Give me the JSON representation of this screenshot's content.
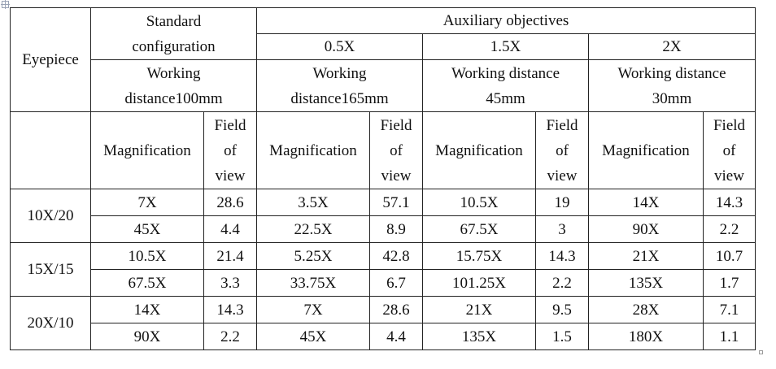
{
  "table": {
    "eyepiece_label": "Eyepiece",
    "standard": {
      "line1": "Standard",
      "line2": "configuration",
      "wd_line1": "Working",
      "wd_line2": "distance100mm"
    },
    "auxiliary_label": "Auxiliary objectives",
    "objectives": [
      {
        "label": "0.5X",
        "wd_line1": "Working",
        "wd_line2": "distance165mm"
      },
      {
        "label": "1.5X",
        "wd_line1": "Working distance",
        "wd_line2": "45mm"
      },
      {
        "label": "2X",
        "wd_line1": "Working distance",
        "wd_line2": "30mm"
      }
    ],
    "magnification_label": "Magnification",
    "fov_line1": "Field",
    "fov_line2": "of",
    "fov_line3": "view",
    "groups": [
      {
        "eyepiece": "10X/20",
        "rows": [
          [
            "7X",
            "28.6",
            "3.5X",
            "57.1",
            "10.5X",
            "19",
            "14X",
            "14.3"
          ],
          [
            "45X",
            "4.4",
            "22.5X",
            "8.9",
            "67.5X",
            "3",
            "90X",
            "2.2"
          ]
        ]
      },
      {
        "eyepiece": "15X/15",
        "rows": [
          [
            "10.5X",
            "21.4",
            "5.25X",
            "42.8",
            "15.75X",
            "14.3",
            "21X",
            "10.7"
          ],
          [
            "67.5X",
            "3.3",
            "33.75X",
            "6.7",
            "101.25X",
            "2.2",
            "135X",
            "1.7"
          ]
        ]
      },
      {
        "eyepiece": "20X/10",
        "rows": [
          [
            "14X",
            "14.3",
            "7X",
            "28.6",
            "21X",
            "9.5",
            "28X",
            "7.1"
          ],
          [
            "90X",
            "2.2",
            "45X",
            "4.4",
            "135X",
            "1.5",
            "180X",
            "1.1"
          ]
        ]
      }
    ]
  }
}
